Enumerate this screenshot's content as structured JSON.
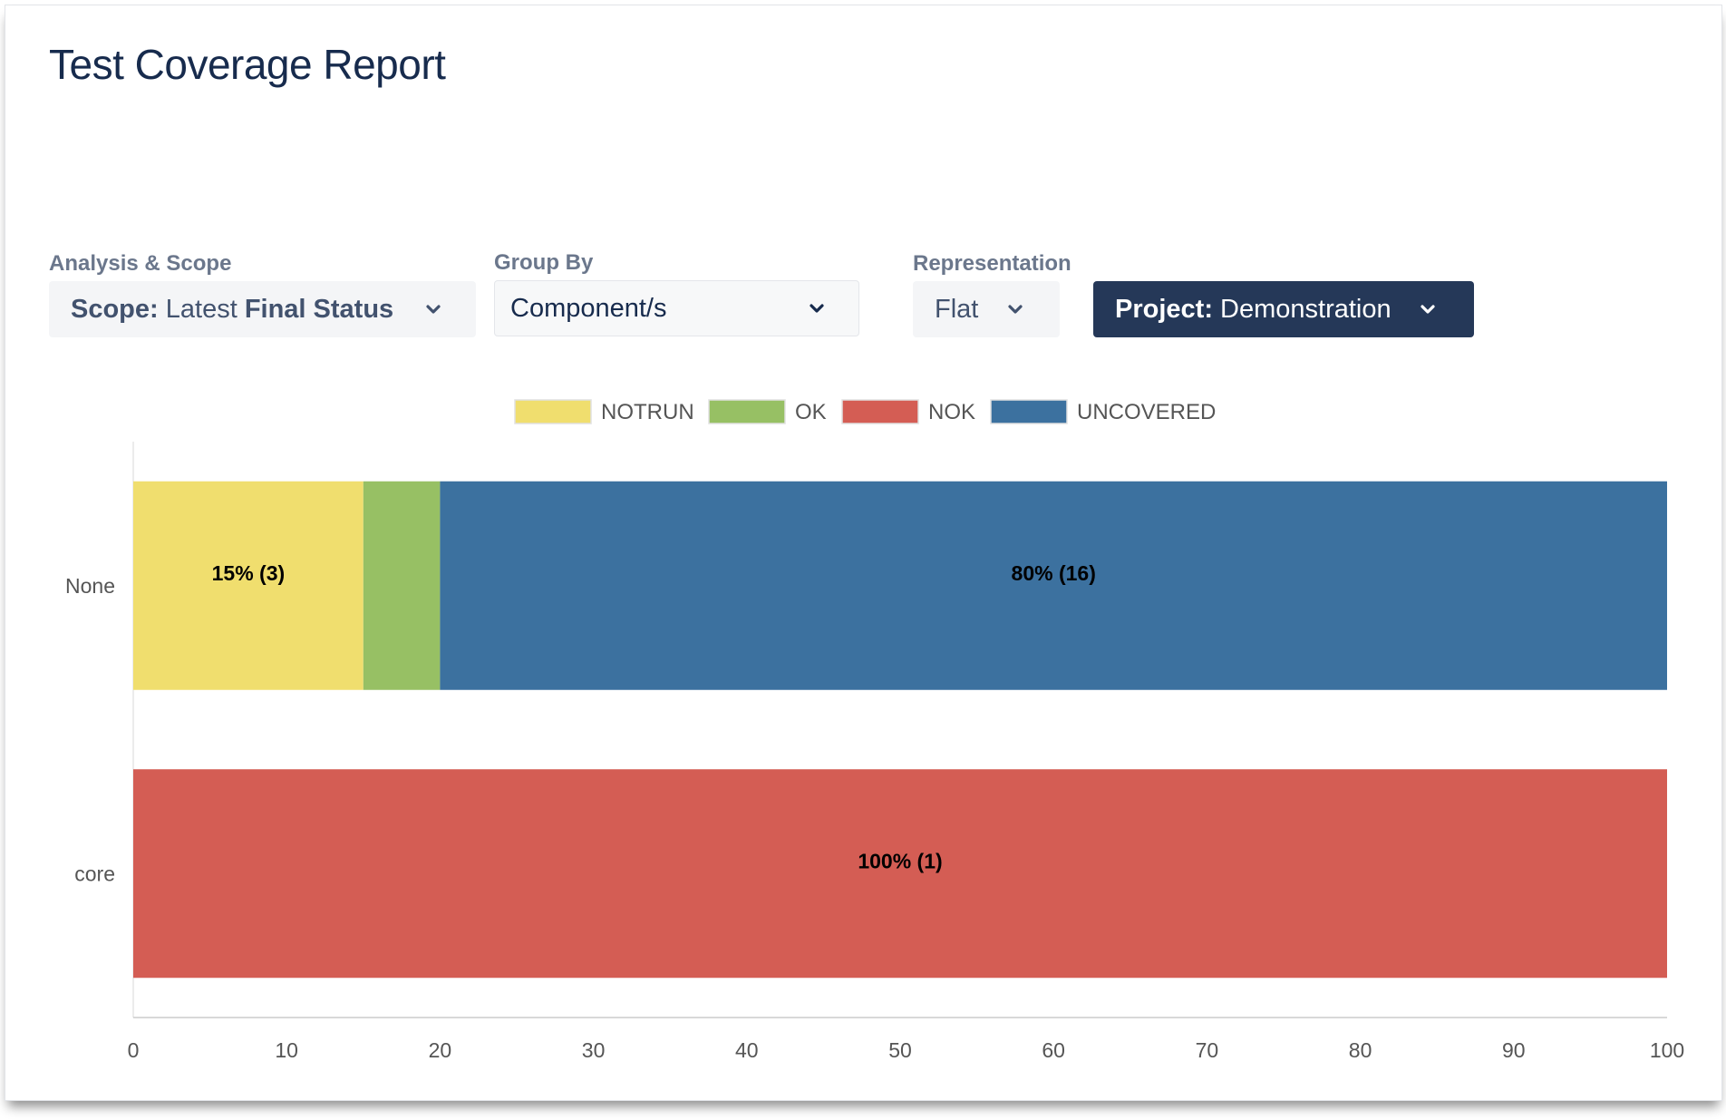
{
  "page": {
    "title": "Test Coverage Report"
  },
  "filters": {
    "analysis": {
      "label": "Analysis & Scope",
      "prefix": "Scope:",
      "value_normal": "Latest",
      "value_bold": "Final Status",
      "icon": "chevron-down-icon"
    },
    "group_by": {
      "label": "Group By",
      "value": "Component/s",
      "icon": "chevron-down-icon"
    },
    "representation": {
      "label": "Representation",
      "value": "Flat",
      "icon": "chevron-down-icon"
    },
    "project": {
      "prefix": "Project:",
      "value": "Demonstration",
      "icon": "chevron-down-icon"
    }
  },
  "colors": {
    "NOTRUN": "#f0de6e",
    "OK": "#97c064",
    "NOK": "#d45d54",
    "UNCOVERED": "#3c719f",
    "title": "#172b4d",
    "project_button": "#253858"
  },
  "chart_data": {
    "type": "bar",
    "orientation": "horizontal",
    "stacked": true,
    "title": "",
    "xlabel": "",
    "ylabel": "",
    "xlim": [
      0,
      100
    ],
    "x_ticks": [
      0,
      10,
      20,
      30,
      40,
      50,
      60,
      70,
      80,
      90,
      100
    ],
    "categories": [
      "None",
      "core"
    ],
    "series": [
      {
        "name": "NOTRUN",
        "values": [
          15,
          0
        ],
        "labels": [
          "15% (3)",
          ""
        ]
      },
      {
        "name": "OK",
        "values": [
          5,
          0
        ],
        "labels": [
          "",
          ""
        ]
      },
      {
        "name": "NOK",
        "values": [
          0,
          100
        ],
        "labels": [
          "",
          "100% (1)"
        ]
      },
      {
        "name": "UNCOVERED",
        "values": [
          80,
          0
        ],
        "labels": [
          "80% (16)",
          ""
        ]
      }
    ],
    "legend": {
      "position": "top-center",
      "entries": [
        "NOTRUN",
        "OK",
        "NOK",
        "UNCOVERED"
      ]
    },
    "grid": false
  }
}
